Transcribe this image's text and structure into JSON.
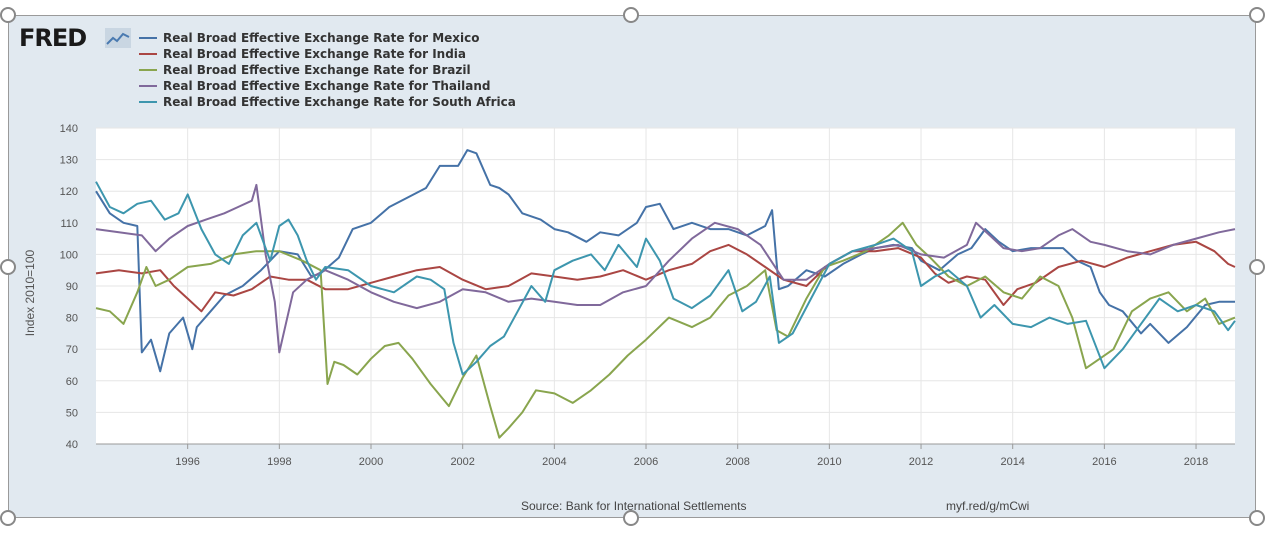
{
  "logo": {
    "text": "FRED"
  },
  "footer": {
    "source": "Source: Bank for International Settlements",
    "url": "myf.red/g/mCwi"
  },
  "chart_data": {
    "type": "line",
    "ylabel": "Index 2010=100",
    "ylim": [
      40,
      140
    ],
    "yticks": [
      40,
      50,
      60,
      70,
      80,
      90,
      100,
      110,
      120,
      130,
      140
    ],
    "xlim": [
      1994.0,
      2018.85
    ],
    "xticks": [
      1996,
      1998,
      2000,
      2002,
      2004,
      2006,
      2008,
      2010,
      2012,
      2014,
      2016,
      2018
    ],
    "grid": true,
    "legend_position": "top-left",
    "series": [
      {
        "name": "Real Broad Effective Exchange Rate for Mexico",
        "color": "#4572a7",
        "x": [
          1994.0,
          1994.3,
          1994.6,
          1994.9,
          1995.0,
          1995.2,
          1995.4,
          1995.6,
          1995.9,
          1996.1,
          1996.2,
          1996.5,
          1996.8,
          1997.2,
          1997.6,
          1998.0,
          1998.4,
          1998.7,
          1998.9,
          1999.3,
          1999.6,
          2000.0,
          2000.4,
          2000.8,
          2001.2,
          2001.5,
          2001.9,
          2002.1,
          2002.3,
          2002.6,
          2002.8,
          2003.0,
          2003.3,
          2003.7,
          2004.0,
          2004.3,
          2004.7,
          2005.0,
          2005.4,
          2005.8,
          2006.0,
          2006.3,
          2006.6,
          2007.0,
          2007.4,
          2007.8,
          2008.2,
          2008.6,
          2008.75,
          2008.9,
          2009.1,
          2009.5,
          2009.9,
          2010.3,
          2010.7,
          2011.0,
          2011.4,
          2011.8,
          2012.0,
          2012.4,
          2012.8,
          2013.1,
          2013.4,
          2013.7,
          2014.0,
          2014.4,
          2014.8,
          2015.1,
          2015.4,
          2015.7,
          2015.9,
          2016.1,
          2016.4,
          2016.8,
          2017.0,
          2017.4,
          2017.8,
          2018.2,
          2018.5,
          2018.85
        ],
        "y": [
          120,
          113,
          110,
          109,
          69,
          73,
          63,
          75,
          80,
          70,
          77,
          82,
          87,
          90,
          95,
          101,
          100,
          93,
          94,
          99,
          108,
          110,
          115,
          118,
          121,
          128,
          128,
          133,
          132,
          122,
          121,
          119,
          113,
          111,
          108,
          107,
          104,
          107,
          106,
          110,
          115,
          116,
          108,
          110,
          108,
          108,
          106,
          109,
          114,
          89,
          90,
          95,
          93,
          97,
          100,
          102,
          103,
          102,
          98,
          95,
          100,
          102,
          108,
          104,
          101,
          102,
          102,
          102,
          98,
          96,
          88,
          84,
          82,
          75,
          78,
          72,
          77,
          84,
          85,
          85
        ]
      },
      {
        "name": "Real Broad Effective Exchange Rate for India",
        "color": "#aa4643",
        "x": [
          1994.0,
          1994.5,
          1995.0,
          1995.4,
          1995.7,
          1996.0,
          1996.3,
          1996.6,
          1997.0,
          1997.4,
          1997.8,
          1998.2,
          1998.6,
          1999.0,
          1999.5,
          2000.0,
          2000.5,
          2001.0,
          2001.5,
          2002.0,
          2002.5,
          2003.0,
          2003.5,
          2004.0,
          2004.5,
          2005.0,
          2005.5,
          2006.0,
          2006.5,
          2007.0,
          2007.4,
          2007.8,
          2008.2,
          2008.6,
          2009.0,
          2009.5,
          2010.0,
          2010.5,
          2011.0,
          2011.5,
          2012.0,
          2012.3,
          2012.6,
          2013.0,
          2013.4,
          2013.8,
          2014.1,
          2014.5,
          2015.0,
          2015.5,
          2016.0,
          2016.5,
          2017.0,
          2017.5,
          2018.0,
          2018.4,
          2018.7,
          2018.85
        ],
        "y": [
          94,
          95,
          94,
          95,
          90,
          86,
          82,
          88,
          87,
          89,
          93,
          92,
          92,
          89,
          89,
          91,
          93,
          95,
          96,
          92,
          89,
          90,
          94,
          93,
          92,
          93,
          95,
          92,
          95,
          97,
          101,
          103,
          100,
          96,
          92,
          90,
          97,
          101,
          101,
          102,
          99,
          94,
          91,
          93,
          92,
          84,
          89,
          91,
          96,
          98,
          96,
          99,
          101,
          103,
          104,
          101,
          97,
          96
        ]
      },
      {
        "name": "Real Broad Effective Exchange Rate for Brazil",
        "color": "#89a54e",
        "x": [
          1994.0,
          1994.3,
          1994.6,
          1994.9,
          1995.1,
          1995.3,
          1995.6,
          1996.0,
          1996.5,
          1997.0,
          1997.5,
          1998.0,
          1998.5,
          1998.9,
          1999.05,
          1999.2,
          1999.4,
          1999.7,
          2000.0,
          2000.3,
          2000.6,
          2000.9,
          2001.3,
          2001.7,
          2002.0,
          2002.3,
          2002.6,
          2002.8,
          2003.0,
          2003.3,
          2003.6,
          2004.0,
          2004.4,
          2004.8,
          2005.2,
          2005.6,
          2006.0,
          2006.5,
          2007.0,
          2007.4,
          2007.8,
          2008.2,
          2008.6,
          2008.85,
          2009.1,
          2009.5,
          2009.9,
          2010.3,
          2010.8,
          2011.3,
          2011.6,
          2011.9,
          2012.2,
          2012.6,
          2013.0,
          2013.4,
          2013.8,
          2014.2,
          2014.6,
          2015.0,
          2015.3,
          2015.6,
          2015.9,
          2016.2,
          2016.6,
          2017.0,
          2017.4,
          2017.8,
          2018.2,
          2018.5,
          2018.85
        ],
        "y": [
          83,
          82,
          78,
          88,
          96,
          90,
          92,
          96,
          97,
          100,
          101,
          101,
          98,
          95,
          59,
          66,
          65,
          62,
          67,
          71,
          72,
          67,
          59,
          52,
          61,
          68,
          52,
          42,
          45,
          50,
          57,
          56,
          53,
          57,
          62,
          68,
          73,
          80,
          77,
          80,
          87,
          90,
          95,
          76,
          74,
          86,
          96,
          98,
          101,
          106,
          110,
          103,
          99,
          93,
          90,
          93,
          88,
          86,
          93,
          90,
          80,
          64,
          67,
          70,
          82,
          86,
          88,
          82,
          86,
          78,
          80
        ]
      },
      {
        "name": "Real Broad Effective Exchange Rate for Thailand",
        "color": "#80699b",
        "x": [
          1994.0,
          1994.5,
          1995.0,
          1995.3,
          1995.6,
          1996.0,
          1996.4,
          1996.8,
          1997.1,
          1997.4,
          1997.5,
          1997.7,
          1997.9,
          1998.0,
          1998.3,
          1998.6,
          1999.0,
          1999.5,
          2000.0,
          2000.5,
          2001.0,
          2001.5,
          2002.0,
          2002.5,
          2003.0,
          2003.5,
          2004.0,
          2004.5,
          2005.0,
          2005.5,
          2006.0,
          2006.5,
          2007.0,
          2007.5,
          2008.0,
          2008.5,
          2009.0,
          2009.5,
          2010.0,
          2010.5,
          2011.0,
          2011.5,
          2012.0,
          2012.5,
          2013.0,
          2013.2,
          2013.5,
          2013.8,
          2014.2,
          2014.6,
          2015.0,
          2015.3,
          2015.7,
          2016.0,
          2016.5,
          2017.0,
          2017.5,
          2018.0,
          2018.5,
          2018.85
        ],
        "y": [
          108,
          107,
          106,
          101,
          105,
          109,
          111,
          113,
          115,
          117,
          122,
          100,
          85,
          69,
          88,
          92,
          95,
          92,
          88,
          85,
          83,
          85,
          89,
          88,
          85,
          86,
          85,
          84,
          84,
          88,
          90,
          98,
          105,
          110,
          108,
          103,
          92,
          92,
          97,
          101,
          102,
          103,
          100,
          99,
          103,
          110,
          106,
          102,
          101,
          102,
          106,
          108,
          104,
          103,
          101,
          100,
          103,
          105,
          107,
          108
        ]
      },
      {
        "name": "Real Broad Effective Exchange Rate for South Africa",
        "color": "#3d96ae",
        "x": [
          1994.0,
          1994.3,
          1994.6,
          1994.9,
          1995.2,
          1995.5,
          1995.8,
          1996.0,
          1996.3,
          1996.6,
          1996.9,
          1997.2,
          1997.5,
          1997.8,
          1998.0,
          1998.2,
          1998.4,
          1998.6,
          1998.8,
          1999.0,
          1999.5,
          2000.0,
          2000.5,
          2001.0,
          2001.3,
          2001.6,
          2001.8,
          2002.0,
          2002.3,
          2002.6,
          2002.9,
          2003.2,
          2003.5,
          2003.8,
          2004.0,
          2004.4,
          2004.8,
          2005.1,
          2005.4,
          2005.8,
          2006.0,
          2006.3,
          2006.6,
          2007.0,
          2007.4,
          2007.8,
          2008.1,
          2008.4,
          2008.7,
          2008.9,
          2009.2,
          2009.6,
          2010.0,
          2010.5,
          2011.0,
          2011.4,
          2011.8,
          2012.0,
          2012.3,
          2012.6,
          2013.0,
          2013.3,
          2013.6,
          2014.0,
          2014.4,
          2014.8,
          2015.2,
          2015.6,
          2016.0,
          2016.4,
          2016.8,
          2017.2,
          2017.6,
          2018.0,
          2018.4,
          2018.7,
          2018.85
        ],
        "y": [
          123,
          115,
          113,
          116,
          117,
          111,
          113,
          119,
          108,
          100,
          97,
          106,
          110,
          98,
          109,
          111,
          106,
          98,
          92,
          96,
          95,
          90,
          88,
          93,
          92,
          89,
          72,
          62,
          66,
          71,
          74,
          82,
          90,
          85,
          95,
          98,
          100,
          95,
          103,
          96,
          105,
          98,
          86,
          83,
          87,
          95,
          82,
          85,
          93,
          72,
          75,
          86,
          97,
          101,
          103,
          105,
          101,
          90,
          93,
          95,
          90,
          80,
          84,
          78,
          77,
          80,
          78,
          79,
          64,
          70,
          78,
          86,
          82,
          84,
          82,
          76,
          79
        ]
      }
    ]
  }
}
